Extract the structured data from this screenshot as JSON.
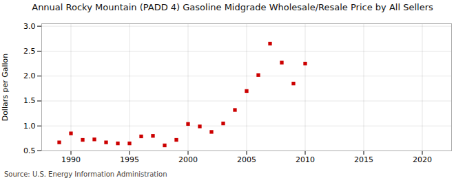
{
  "chart_data": {
    "type": "scatter",
    "title": "Annual Rocky Mountain (PADD 4) Gasoline Midgrade Wholesale/Resale Price by All Sellers",
    "ylabel": "Dollars per Gallon",
    "source": "Source: U.S. Energy Information Administration",
    "x": [
      1989,
      1990,
      1991,
      1992,
      1993,
      1994,
      1995,
      1996,
      1997,
      1998,
      1999,
      2000,
      2001,
      2002,
      2003,
      2004,
      2005,
      2006,
      2007,
      2008,
      2009,
      2010
    ],
    "values": [
      0.67,
      0.85,
      0.72,
      0.73,
      0.67,
      0.65,
      0.65,
      0.79,
      0.8,
      0.61,
      0.72,
      1.04,
      0.99,
      0.88,
      1.05,
      1.32,
      1.7,
      2.02,
      2.65,
      2.27,
      1.85,
      2.25
    ],
    "color": "#cc0000",
    "marker": "square",
    "xlim": [
      1987.5,
      2022.5
    ],
    "ylim": [
      0.5,
      3.05
    ],
    "xticks": [
      1990,
      1995,
      2000,
      2005,
      2010,
      2015,
      2020
    ],
    "yticks": [
      0.5,
      {
        "value": 1,
        "label": "1.0"
      },
      1.5,
      {
        "value": 2,
        "label": "2.0"
      },
      2.5,
      {
        "value": 3,
        "label": "3.0"
      }
    ],
    "grid": true
  }
}
